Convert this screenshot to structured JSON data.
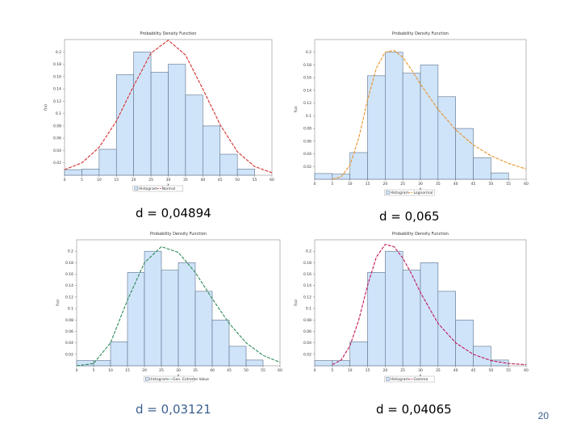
{
  "page_number": "20",
  "colors": {
    "bar_fill": "#cfe4f9",
    "bar_stroke": "#5a6f8a",
    "caption_blue": "#3b5f8f"
  },
  "chart_data": [
    {
      "type": "bar",
      "title": "Probability Density Function",
      "xlabel": "x",
      "ylabel": "f(x)",
      "x_ticks": [
        0,
        5,
        10,
        15,
        20,
        25,
        30,
        35,
        40,
        45,
        50,
        55,
        60
      ],
      "y_ticks": [
        0.02,
        0.04,
        0.06,
        0.08,
        0.1,
        0.12,
        0.14,
        0.16,
        0.18,
        0.2
      ],
      "xlim": [
        0,
        60
      ],
      "ylim": [
        0,
        0.22
      ],
      "bins": [
        [
          0,
          5
        ],
        [
          5,
          10
        ],
        [
          10,
          15
        ],
        [
          15,
          20
        ],
        [
          20,
          25
        ],
        [
          25,
          30
        ],
        [
          30,
          35
        ],
        [
          35,
          40
        ],
        [
          40,
          45
        ],
        [
          45,
          50
        ],
        [
          50,
          55
        ],
        [
          55,
          60
        ]
      ],
      "values": [
        0.009,
        0.01,
        0.042,
        0.163,
        0.2,
        0.167,
        0.18,
        0.13,
        0.08,
        0.034,
        0.01,
        0
      ],
      "curve": {
        "name": "Normal",
        "color": "#d62d2d",
        "x": [
          0,
          5,
          10,
          15,
          20,
          25,
          30,
          35,
          40,
          45,
          50,
          55,
          60
        ],
        "y": [
          0.009,
          0.02,
          0.045,
          0.088,
          0.145,
          0.198,
          0.219,
          0.195,
          0.14,
          0.082,
          0.038,
          0.014,
          0.004
        ]
      },
      "legend": [
        "Histogram",
        "Normal"
      ],
      "caption": "d = 0,04894"
    },
    {
      "type": "bar",
      "title": "Probability Density Function",
      "xlabel": "x",
      "ylabel": "f(x)",
      "x_ticks": [
        0,
        5,
        10,
        15,
        20,
        25,
        30,
        35,
        40,
        45,
        50,
        55,
        60
      ],
      "y_ticks": [
        0.02,
        0.04,
        0.06,
        0.08,
        0.1,
        0.12,
        0.14,
        0.16,
        0.18,
        0.2
      ],
      "xlim": [
        0,
        60
      ],
      "ylim": [
        0,
        0.22
      ],
      "bins": [
        [
          0,
          5
        ],
        [
          5,
          10
        ],
        [
          10,
          15
        ],
        [
          15,
          20
        ],
        [
          20,
          25
        ],
        [
          25,
          30
        ],
        [
          30,
          35
        ],
        [
          35,
          40
        ],
        [
          40,
          45
        ],
        [
          45,
          50
        ],
        [
          50,
          55
        ],
        [
          55,
          60
        ]
      ],
      "values": [
        0.009,
        0.008,
        0.042,
        0.163,
        0.2,
        0.167,
        0.18,
        0.13,
        0.08,
        0.034,
        0.01,
        0
      ],
      "curve": {
        "name": "Lognormal",
        "color": "#e8942a",
        "x": [
          5,
          7.5,
          10,
          12.5,
          15,
          17.5,
          20,
          22.5,
          25,
          27.5,
          30,
          35,
          40,
          45,
          50,
          55,
          60
        ],
        "y": [
          0,
          0.004,
          0.022,
          0.065,
          0.125,
          0.175,
          0.2,
          0.203,
          0.192,
          0.172,
          0.15,
          0.11,
          0.078,
          0.054,
          0.037,
          0.025,
          0.016
        ]
      },
      "legend": [
        "Histogram",
        "Lognormal"
      ],
      "caption": "d = 0,065"
    },
    {
      "type": "bar",
      "title": "Probability Density Function",
      "xlabel": "x",
      "ylabel": "f(x)",
      "x_ticks": [
        0,
        5,
        10,
        15,
        20,
        25,
        30,
        35,
        40,
        45,
        50,
        55,
        60
      ],
      "y_ticks": [
        0.02,
        0.04,
        0.06,
        0.08,
        0.1,
        0.12,
        0.14,
        0.16,
        0.18,
        0.2
      ],
      "xlim": [
        0,
        60
      ],
      "ylim": [
        0,
        0.22
      ],
      "bins": [
        [
          0,
          5
        ],
        [
          5,
          10
        ],
        [
          10,
          15
        ],
        [
          15,
          20
        ],
        [
          20,
          25
        ],
        [
          25,
          30
        ],
        [
          30,
          35
        ],
        [
          35,
          40
        ],
        [
          40,
          45
        ],
        [
          45,
          50
        ],
        [
          50,
          55
        ],
        [
          55,
          60
        ]
      ],
      "values": [
        0.009,
        0.009,
        0.042,
        0.163,
        0.2,
        0.167,
        0.18,
        0.13,
        0.08,
        0.034,
        0.01,
        0
      ],
      "curve": {
        "name": "Gen. Extreme Value",
        "color": "#2e8b57",
        "x": [
          0,
          5,
          10,
          15,
          20,
          25,
          30,
          35,
          40,
          45,
          50,
          55,
          60
        ],
        "y": [
          0,
          0.004,
          0.04,
          0.115,
          0.18,
          0.208,
          0.198,
          0.163,
          0.117,
          0.074,
          0.04,
          0.018,
          0.006
        ]
      },
      "legend": [
        "Histogram",
        "Gen. Extreme Value"
      ],
      "caption": "d = 0,03121"
    },
    {
      "type": "bar",
      "title": "Probability Density Function",
      "xlabel": "x",
      "ylabel": "f(x)",
      "x_ticks": [
        0,
        5,
        10,
        15,
        20,
        25,
        30,
        35,
        40,
        45,
        50,
        55,
        60
      ],
      "y_ticks": [
        0.02,
        0.04,
        0.06,
        0.08,
        0.1,
        0.12,
        0.14,
        0.16,
        0.18,
        0.2
      ],
      "xlim": [
        0,
        60
      ],
      "ylim": [
        0,
        0.22
      ],
      "bins": [
        [
          0,
          5
        ],
        [
          5,
          10
        ],
        [
          10,
          15
        ],
        [
          15,
          20
        ],
        [
          20,
          25
        ],
        [
          25,
          30
        ],
        [
          30,
          35
        ],
        [
          35,
          40
        ],
        [
          40,
          45
        ],
        [
          45,
          50
        ],
        [
          50,
          55
        ],
        [
          55,
          60
        ]
      ],
      "values": [
        0.009,
        0.009,
        0.042,
        0.163,
        0.2,
        0.167,
        0.18,
        0.13,
        0.08,
        0.034,
        0.01,
        0
      ],
      "curve": {
        "name": "Gamma",
        "color": "#c2185b",
        "x": [
          5,
          7.5,
          10,
          12.5,
          15,
          17.5,
          20,
          22.5,
          25,
          27.5,
          30,
          35,
          40,
          45,
          50,
          55,
          60
        ],
        "y": [
          0.002,
          0.01,
          0.035,
          0.08,
          0.14,
          0.19,
          0.212,
          0.208,
          0.188,
          0.16,
          0.128,
          0.074,
          0.04,
          0.02,
          0.009,
          0.004,
          0.002
        ]
      },
      "legend": [
        "Histogram",
        "Gamma"
      ],
      "caption": "d = 0,04065"
    }
  ]
}
